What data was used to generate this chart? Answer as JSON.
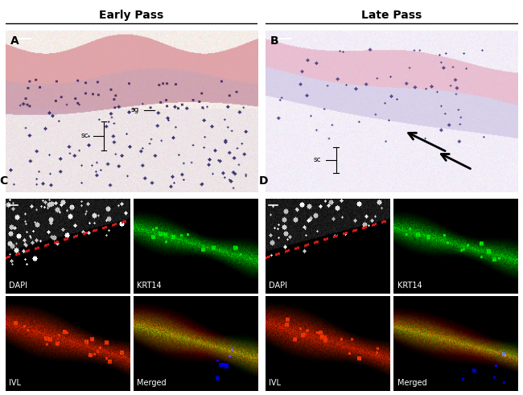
{
  "title_left": "Early Pass",
  "title_right": "Late Pass",
  "panel_a_label": "A",
  "panel_b_label": "B",
  "panel_c_label": "C",
  "panel_d_label": "D",
  "label_dapi": "DAPI",
  "label_krt14": "KRT14",
  "label_ivl": "IVL",
  "label_merged": "Merged",
  "label_sc": "sc",
  "label_sg": "sg",
  "background_color": "#ffffff",
  "title_fontsize": 10,
  "label_fontsize": 7,
  "panel_label_fontsize": 10,
  "he_bg": "#e8d8d0",
  "ihc_bg": "#ddd8e8"
}
